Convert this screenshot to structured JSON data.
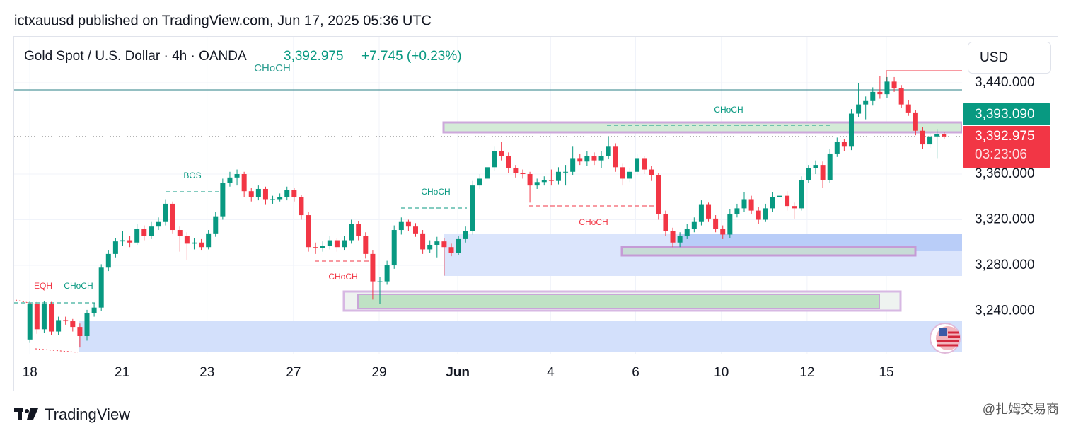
{
  "header": {
    "published": "ictxauusd published on TradingView.com, Jun 17, 2025 05:36 UTC",
    "footer_brand": "TradingView",
    "watermark": "@扎姆交易商"
  },
  "chart_data": {
    "type": "candlestick",
    "title": "Gold Spot / U.S. Dollar · 4h · OANDA",
    "price": "3,392.975",
    "change": "+7.745 (+0.23%)",
    "currency": "USD",
    "up_color": "#089981",
    "down_color": "#f23645",
    "ylim": [
      3202.5,
      3480.3
    ],
    "yticks": [
      {
        "value": 3440,
        "label": "3,440.000"
      },
      {
        "value": 3360,
        "label": "3,360.000"
      },
      {
        "value": 3320,
        "label": "3,320.000"
      },
      {
        "value": 3280,
        "label": "3,280.000"
      },
      {
        "value": 3240,
        "label": "3,240.000"
      }
    ],
    "xlim": [
      -2.2,
      130.5
    ],
    "xticks": [
      {
        "value": 0,
        "label": "18"
      },
      {
        "value": 12.9,
        "label": "21"
      },
      {
        "value": 24.8,
        "label": "23"
      },
      {
        "value": 36.9,
        "label": "27"
      },
      {
        "value": 48.9,
        "label": "29"
      },
      {
        "value": 59.9,
        "label": "Jun"
      },
      {
        "value": 72.9,
        "label": "4"
      },
      {
        "value": 84.8,
        "label": "6"
      },
      {
        "value": 96.8,
        "label": "10"
      },
      {
        "value": 108.8,
        "label": "12"
      },
      {
        "value": 119.9,
        "label": "15"
      }
    ],
    "last_price": {
      "value": 3392.975,
      "label": "3,392.975"
    },
    "countdown": "03:23:06",
    "bid_price": {
      "value": 3393.09,
      "label": "3,393.090"
    },
    "annotations": [
      "CHoCH",
      "CHoCH",
      "BOS",
      "CHoCH",
      "CHoCH",
      "CHoCH",
      "EQH",
      "CHoCH"
    ],
    "ohlc": [
      [
        3215,
        3249,
        3212,
        3246
      ],
      [
        3246,
        3248,
        3220,
        3224
      ],
      [
        3224,
        3249,
        3221,
        3246
      ],
      [
        3246,
        3248,
        3219,
        3222
      ],
      [
        3222,
        3235,
        3219,
        3232
      ],
      [
        3232,
        3235,
        3228,
        3231
      ],
      [
        3231,
        3233,
        3222,
        3226
      ],
      [
        3226,
        3229,
        3208,
        3218
      ],
      [
        3218,
        3241,
        3214,
        3238
      ],
      [
        3238,
        3247,
        3235,
        3243
      ],
      [
        3243,
        3281,
        3240,
        3278
      ],
      [
        3278,
        3293,
        3275,
        3290
      ],
      [
        3290,
        3304,
        3287,
        3301
      ],
      [
        3301,
        3310,
        3297,
        3302
      ],
      [
        3302,
        3306,
        3296,
        3300
      ],
      [
        3300,
        3316,
        3298,
        3312
      ],
      [
        3312,
        3315,
        3302,
        3306
      ],
      [
        3306,
        3318,
        3303,
        3314
      ],
      [
        3314,
        3322,
        3311,
        3318
      ],
      [
        3318,
        3338,
        3315,
        3334
      ],
      [
        3334,
        3336,
        3308,
        3311
      ],
      [
        3311,
        3314,
        3292,
        3306
      ],
      [
        3306,
        3309,
        3285,
        3299
      ],
      [
        3299,
        3304,
        3294,
        3300
      ],
      [
        3300,
        3303,
        3293,
        3296
      ],
      [
        3296,
        3311,
        3294,
        3308
      ],
      [
        3308,
        3327,
        3305,
        3323
      ],
      [
        3323,
        3356,
        3320,
        3352
      ],
      [
        3352,
        3362,
        3349,
        3357
      ],
      [
        3357,
        3364,
        3350,
        3360
      ],
      [
        3360,
        3362,
        3340,
        3345
      ],
      [
        3345,
        3348,
        3336,
        3340
      ],
      [
        3340,
        3350,
        3337,
        3347
      ],
      [
        3347,
        3349,
        3333,
        3338
      ],
      [
        3338,
        3341,
        3334,
        3338
      ],
      [
        3338,
        3343,
        3336,
        3340
      ],
      [
        3340,
        3349,
        3337,
        3346
      ],
      [
        3346,
        3348,
        3336,
        3340
      ],
      [
        3340,
        3342,
        3320,
        3324
      ],
      [
        3324,
        3327,
        3292,
        3296
      ],
      [
        3296,
        3300,
        3290,
        3295
      ],
      [
        3295,
        3301,
        3292,
        3297
      ],
      [
        3297,
        3306,
        3294,
        3302
      ],
      [
        3302,
        3304,
        3292,
        3296
      ],
      [
        3296,
        3306,
        3293,
        3302
      ],
      [
        3302,
        3320,
        3299,
        3316
      ],
      [
        3316,
        3319,
        3302,
        3306
      ],
      [
        3306,
        3309,
        3286,
        3290
      ],
      [
        3290,
        3293,
        3250,
        3266
      ],
      [
        3266,
        3270,
        3246,
        3266
      ],
      [
        3266,
        3284,
        3263,
        3280
      ],
      [
        3280,
        3315,
        3277,
        3311
      ],
      [
        3311,
        3322,
        3307,
        3318
      ],
      [
        3318,
        3320,
        3310,
        3314
      ],
      [
        3314,
        3317,
        3305,
        3308
      ],
      [
        3308,
        3311,
        3290,
        3294
      ],
      [
        3294,
        3302,
        3291,
        3298
      ],
      [
        3298,
        3305,
        3287,
        3301
      ],
      [
        3301,
        3304,
        3271,
        3296
      ],
      [
        3296,
        3299,
        3288,
        3291
      ],
      [
        3291,
        3306,
        3289,
        3303
      ],
      [
        3303,
        3314,
        3300,
        3310
      ],
      [
        3310,
        3354,
        3307,
        3350
      ],
      [
        3350,
        3360,
        3347,
        3356
      ],
      [
        3356,
        3370,
        3353,
        3366
      ],
      [
        3366,
        3384,
        3363,
        3380
      ],
      [
        3380,
        3388,
        3372,
        3376
      ],
      [
        3376,
        3379,
        3361,
        3365
      ],
      [
        3365,
        3368,
        3357,
        3361
      ],
      [
        3361,
        3364,
        3356,
        3360
      ],
      [
        3360,
        3362,
        3335,
        3350
      ],
      [
        3350,
        3356,
        3347,
        3353
      ],
      [
        3353,
        3358,
        3350,
        3355
      ],
      [
        3355,
        3364,
        3350,
        3354
      ],
      [
        3354,
        3366,
        3351,
        3362
      ],
      [
        3362,
        3368,
        3350,
        3362
      ],
      [
        3362,
        3384,
        3359,
        3374
      ],
      [
        3374,
        3378,
        3368,
        3371
      ],
      [
        3371,
        3380,
        3367,
        3376
      ],
      [
        3376,
        3379,
        3368,
        3372
      ],
      [
        3372,
        3380,
        3365,
        3376
      ],
      [
        3376,
        3393,
        3373,
        3384
      ],
      [
        3384,
        3387,
        3362,
        3366
      ],
      [
        3366,
        3369,
        3350,
        3356
      ],
      [
        3356,
        3365,
        3353,
        3362
      ],
      [
        3362,
        3378,
        3359,
        3374
      ],
      [
        3374,
        3376,
        3360,
        3364
      ],
      [
        3364,
        3367,
        3354,
        3359
      ],
      [
        3359,
        3361,
        3320,
        3325
      ],
      [
        3325,
        3328,
        3306,
        3310
      ],
      [
        3310,
        3313,
        3296,
        3300
      ],
      [
        3300,
        3309,
        3296,
        3306
      ],
      [
        3306,
        3316,
        3303,
        3312
      ],
      [
        3312,
        3322,
        3309,
        3318
      ],
      [
        3318,
        3337,
        3315,
        3333
      ],
      [
        3333,
        3335,
        3318,
        3321
      ],
      [
        3321,
        3324,
        3309,
        3312
      ],
      [
        3312,
        3315,
        3303,
        3307
      ],
      [
        3307,
        3329,
        3304,
        3325
      ],
      [
        3325,
        3334,
        3322,
        3330
      ],
      [
        3330,
        3344,
        3327,
        3338
      ],
      [
        3338,
        3341,
        3325,
        3328
      ],
      [
        3328,
        3331,
        3316,
        3320
      ],
      [
        3320,
        3334,
        3318,
        3330
      ],
      [
        3330,
        3344,
        3327,
        3340
      ],
      [
        3340,
        3351,
        3335,
        3341
      ],
      [
        3341,
        3345,
        3328,
        3332
      ],
      [
        3332,
        3335,
        3321,
        3330
      ],
      [
        3330,
        3358,
        3328,
        3355
      ],
      [
        3355,
        3368,
        3352,
        3365
      ],
      [
        3365,
        3372,
        3360,
        3368
      ],
      [
        3368,
        3371,
        3348,
        3355
      ],
      [
        3355,
        3382,
        3352,
        3378
      ],
      [
        3378,
        3392,
        3375,
        3388
      ],
      [
        3388,
        3391,
        3380,
        3384
      ],
      [
        3384,
        3417,
        3381,
        3413
      ],
      [
        3413,
        3440,
        3410,
        3421
      ],
      [
        3421,
        3428,
        3408,
        3424
      ],
      [
        3424,
        3436,
        3420,
        3432
      ],
      [
        3432,
        3446,
        3426,
        3430
      ],
      [
        3430,
        3445,
        3427,
        3441
      ],
      [
        3441,
        3445,
        3432,
        3435
      ],
      [
        3435,
        3438,
        3418,
        3421
      ],
      [
        3421,
        3425,
        3411,
        3414
      ],
      [
        3414,
        3416,
        3394,
        3398
      ],
      [
        3398,
        3401,
        3382,
        3386
      ],
      [
        3386,
        3396,
        3383,
        3393
      ],
      [
        3393,
        3399,
        3374,
        3395
      ],
      [
        3395,
        3397,
        3391,
        3392.975
      ]
    ]
  }
}
